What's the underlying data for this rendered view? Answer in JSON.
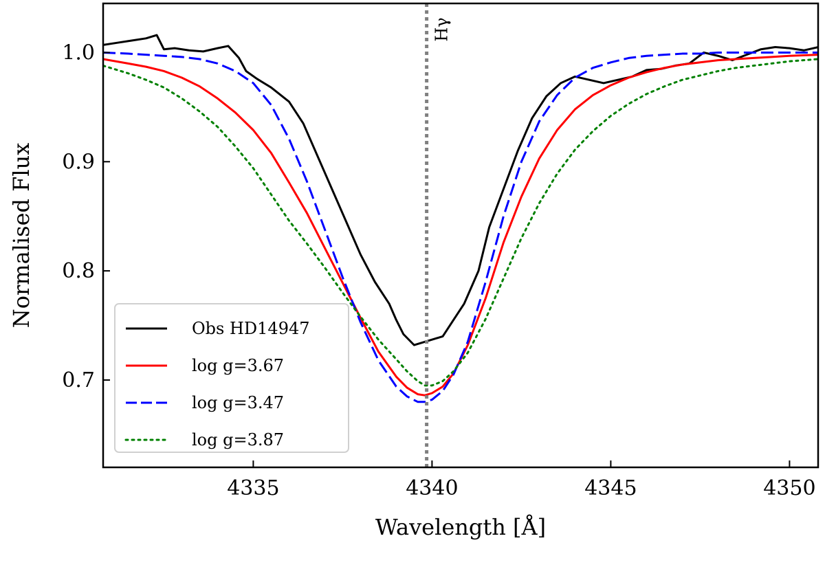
{
  "chart_data": {
    "type": "line",
    "title": "",
    "xlabel": "Wavelength [Å]",
    "ylabel": "Normalised Flux",
    "xlim": [
      4330.8,
      4350.8
    ],
    "ylim": [
      0.62,
      1.045
    ],
    "xticks": [
      4335,
      4340,
      4345,
      4350
    ],
    "xtick_labels": [
      "4335",
      "4340",
      "4345",
      "4350"
    ],
    "yticks": [
      0.7,
      0.8,
      0.9,
      1.0
    ],
    "ytick_labels": [
      "0.7",
      "0.8",
      "0.9",
      "1.0"
    ],
    "grid": false,
    "legend_position": "lower-left",
    "annotations": [
      {
        "text": "Hγ",
        "x": 4339.85,
        "vline": true,
        "color": "#808080",
        "style": "dotted"
      }
    ],
    "series": [
      {
        "name": "Obs HD14947",
        "color": "#000000",
        "style": "solid",
        "x": [
          4330.8,
          4331.2,
          4331.6,
          4332.0,
          4332.3,
          4332.5,
          4332.8,
          4333.2,
          4333.6,
          4334.0,
          4334.3,
          4334.6,
          4334.8,
          4335.1,
          4335.5,
          4336.0,
          4336.4,
          4336.8,
          4337.2,
          4337.6,
          4338.0,
          4338.4,
          4338.8,
          4339.0,
          4339.2,
          4339.5,
          4339.8,
          4340.1,
          4340.3,
          4340.6,
          4340.9,
          4341.3,
          4341.6,
          4342.0,
          4342.4,
          4342.8,
          4343.2,
          4343.6,
          4344.0,
          4344.4,
          4344.8,
          4345.2,
          4345.6,
          4346.0,
          4346.4,
          4346.8,
          4347.2,
          4347.6,
          4348.0,
          4348.4,
          4348.8,
          4349.2,
          4349.6,
          4350.0,
          4350.4,
          4350.8
        ],
        "y": [
          1.007,
          1.009,
          1.011,
          1.013,
          1.016,
          1.003,
          1.004,
          1.002,
          1.001,
          1.004,
          1.006,
          0.995,
          0.983,
          0.976,
          0.968,
          0.955,
          0.935,
          0.905,
          0.875,
          0.845,
          0.815,
          0.79,
          0.77,
          0.755,
          0.742,
          0.732,
          0.735,
          0.738,
          0.74,
          0.755,
          0.77,
          0.8,
          0.84,
          0.875,
          0.91,
          0.94,
          0.96,
          0.972,
          0.978,
          0.975,
          0.972,
          0.975,
          0.978,
          0.984,
          0.985,
          0.988,
          0.99,
          1.0,
          0.997,
          0.993,
          0.998,
          1.003,
          1.005,
          1.004,
          1.002,
          1.005
        ]
      },
      {
        "name": "log g=3.67",
        "color": "#ff0000",
        "style": "solid",
        "x": [
          4330.8,
          4331.5,
          4332.0,
          4332.5,
          4333.0,
          4333.5,
          4334.0,
          4334.5,
          4335.0,
          4335.5,
          4336.0,
          4336.5,
          4337.0,
          4337.5,
          4338.0,
          4338.5,
          4339.0,
          4339.3,
          4339.6,
          4339.8,
          4340.0,
          4340.3,
          4340.6,
          4341.0,
          4341.5,
          4342.0,
          4342.5,
          4343.0,
          4343.5,
          4344.0,
          4344.5,
          4345.0,
          4345.5,
          4346.0,
          4346.5,
          4347.0,
          4347.5,
          4348.0,
          4348.5,
          4349.0,
          4349.5,
          4350.0,
          4350.8
        ],
        "y": [
          0.994,
          0.99,
          0.987,
          0.983,
          0.977,
          0.969,
          0.958,
          0.945,
          0.929,
          0.908,
          0.881,
          0.853,
          0.821,
          0.789,
          0.757,
          0.726,
          0.703,
          0.693,
          0.687,
          0.686,
          0.688,
          0.694,
          0.706,
          0.732,
          0.775,
          0.826,
          0.868,
          0.903,
          0.929,
          0.948,
          0.961,
          0.97,
          0.977,
          0.982,
          0.986,
          0.989,
          0.991,
          0.993,
          0.994,
          0.995,
          0.996,
          0.997,
          0.998
        ]
      },
      {
        "name": "log g=3.47",
        "color": "#0000ff",
        "style": "dashed",
        "x": [
          4330.8,
          4331.5,
          4332.0,
          4332.5,
          4333.0,
          4333.5,
          4334.0,
          4334.5,
          4335.0,
          4335.5,
          4336.0,
          4336.5,
          4337.0,
          4337.5,
          4338.0,
          4338.5,
          4339.0,
          4339.3,
          4339.6,
          4339.8,
          4340.0,
          4340.3,
          4340.6,
          4341.0,
          4341.5,
          4342.0,
          4342.5,
          4343.0,
          4343.5,
          4344.0,
          4344.5,
          4345.0,
          4345.5,
          4346.0,
          4346.5,
          4347.0,
          4347.5,
          4348.0,
          4348.5,
          4349.0,
          4349.5,
          4350.0,
          4350.8
        ],
        "y": [
          1.0,
          0.999,
          0.998,
          0.997,
          0.996,
          0.994,
          0.99,
          0.983,
          0.972,
          0.952,
          0.921,
          0.882,
          0.838,
          0.794,
          0.753,
          0.718,
          0.694,
          0.685,
          0.68,
          0.68,
          0.682,
          0.69,
          0.705,
          0.735,
          0.79,
          0.85,
          0.9,
          0.937,
          0.961,
          0.977,
          0.986,
          0.991,
          0.995,
          0.997,
          0.998,
          0.999,
          0.999,
          1.0,
          1.0,
          1.0,
          1.0,
          1.0,
          1.0
        ]
      },
      {
        "name": "log g=3.87",
        "color": "#008000",
        "style": "dotted",
        "x": [
          4330.8,
          4331.5,
          4332.0,
          4332.5,
          4333.0,
          4333.5,
          4334.0,
          4334.5,
          4335.0,
          4335.5,
          4336.0,
          4336.5,
          4337.0,
          4337.5,
          4338.0,
          4338.5,
          4339.0,
          4339.3,
          4339.6,
          4339.8,
          4340.0,
          4340.3,
          4340.6,
          4341.0,
          4341.5,
          4342.0,
          4342.5,
          4343.0,
          4343.5,
          4344.0,
          4344.5,
          4345.0,
          4345.5,
          4346.0,
          4346.5,
          4347.0,
          4347.5,
          4348.0,
          4348.5,
          4349.0,
          4349.5,
          4350.0,
          4350.8
        ],
        "y": [
          0.988,
          0.981,
          0.975,
          0.968,
          0.958,
          0.946,
          0.932,
          0.914,
          0.894,
          0.87,
          0.846,
          0.825,
          0.803,
          0.78,
          0.758,
          0.737,
          0.719,
          0.708,
          0.699,
          0.695,
          0.695,
          0.699,
          0.708,
          0.725,
          0.756,
          0.793,
          0.83,
          0.862,
          0.889,
          0.911,
          0.928,
          0.942,
          0.953,
          0.962,
          0.969,
          0.975,
          0.979,
          0.983,
          0.986,
          0.988,
          0.99,
          0.992,
          0.994
        ]
      }
    ]
  }
}
